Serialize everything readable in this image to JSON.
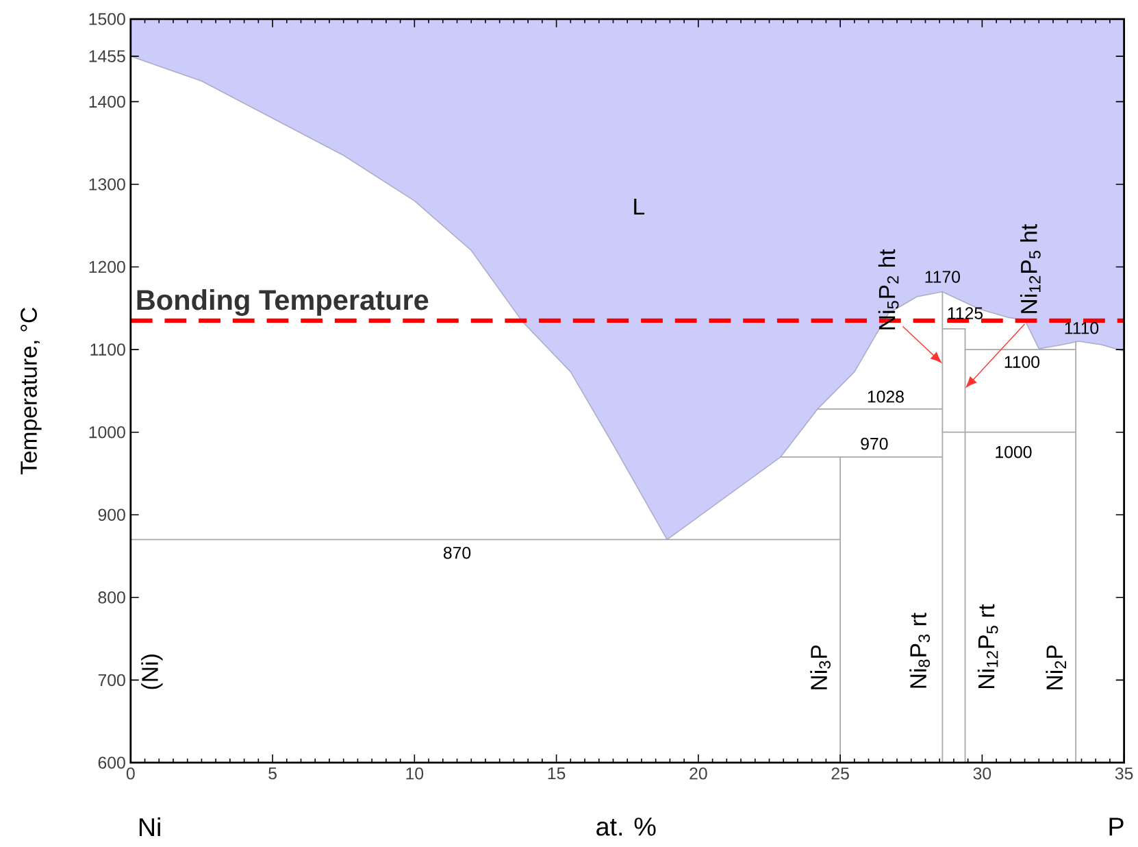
{
  "chart_data": {
    "type": "line",
    "xlabel": "at. %",
    "ylabel": "Temperature, °C",
    "xlim": [
      0,
      35
    ],
    "ylim": [
      600,
      1500
    ],
    "xticks": [
      0,
      5,
      10,
      15,
      20,
      25,
      30,
      35
    ],
    "yticks": [
      600,
      700,
      800,
      900,
      1000,
      1100,
      1200,
      1300,
      1400,
      1455,
      1500
    ],
    "series": [
      {
        "type": "area",
        "color": "#ccccfa",
        "x": [
          0,
          2.5,
          5,
          7.5,
          10,
          12,
          13.8,
          15.5,
          17,
          18.9,
          20.5,
          22.9,
          24.2,
          25.5,
          26.7,
          27.7,
          28.6,
          29.9,
          30.9,
          31.5,
          32.0,
          32.7,
          33.4,
          34.2,
          35,
          35,
          0
        ],
        "values": [
          1455,
          1425,
          1380,
          1335,
          1280,
          1220,
          1134,
          1073,
          985,
          870,
          910,
          970,
          1028,
          1073,
          1144,
          1164,
          1170,
          1149,
          1139,
          1136,
          1101,
          1105,
          1110,
          1106,
          1098,
          1500,
          1500
        ]
      },
      {
        "color": "#a8a8a8",
        "x": [
          0,
          25
        ],
        "values": [
          870,
          870
        ]
      },
      {
        "color": "#a8a8a8",
        "x": [
          22.9,
          28.6
        ],
        "values": [
          970,
          970
        ]
      },
      {
        "color": "#a8a8a8",
        "x": [
          24.2,
          28.6
        ],
        "values": [
          1028,
          1028
        ]
      },
      {
        "color": "#a8a8a8",
        "x": [
          28.6,
          29.4
        ],
        "values": [
          1125,
          1125
        ]
      },
      {
        "color": "#a8a8a8",
        "x": [
          29.4,
          33.3
        ],
        "values": [
          1100,
          1100
        ]
      },
      {
        "color": "#a8a8a8",
        "x": [
          28.6,
          33.3
        ],
        "values": [
          1000,
          1000
        ]
      },
      {
        "color": "#a8a8a8",
        "x": [
          25,
          25
        ],
        "values": [
          600,
          970
        ]
      },
      {
        "color": "#a8a8a8",
        "x": [
          28.6,
          28.6
        ],
        "values": [
          600,
          1170
        ]
      },
      {
        "color": "#a8a8a8",
        "x": [
          29.4,
          29.4
        ],
        "values": [
          600,
          1125
        ]
      },
      {
        "color": "#a8a8a8",
        "x": [
          33.3,
          33.3
        ],
        "values": [
          600,
          1110
        ]
      }
    ],
    "ref_lines": [
      {
        "axis": "y",
        "value": 1135,
        "label": "Bonding Temperature",
        "color": "#ff0000",
        "line_style": "dashed"
      }
    ],
    "annotations": [
      "L",
      "870",
      "970",
      "1028",
      "1170",
      "1125",
      "1100",
      "1110",
      "1000",
      "(Ni)",
      "Ni$_{3}$P",
      "Ni$_{8}$P$_{3}$ rt",
      "Ni$_{12}$P$_{5}$ rt",
      "Ni$_{2}$P",
      {
        "text": "Ni$_{5}$P$_{2}$ ht",
        "x": 28.6,
        "y": 1083
      },
      {
        "text": "Ni$_{12}$P$_{5}$ ht",
        "x": 29.4,
        "y": 1053
      },
      "Ni",
      "P"
    ]
  }
}
